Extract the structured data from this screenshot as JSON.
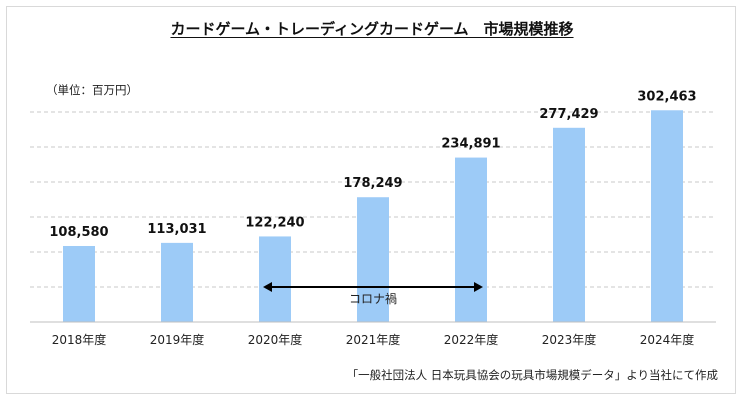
{
  "chart_data": {
    "type": "bar",
    "title": "カードゲーム・トレーディングカードゲーム　市場規模推移",
    "unit_label": "（単位：百万円）",
    "categories": [
      "2018年度",
      "2019年度",
      "2020年度",
      "2021年度",
      "2022年度",
      "2023年度",
      "2024年度"
    ],
    "values": [
      108580,
      113031,
      122240,
      178249,
      234891,
      277429,
      302463
    ],
    "value_labels": [
      "108,580",
      "113,031",
      "122,240",
      "178,249",
      "234,891",
      "277,429",
      "302,463"
    ],
    "ylim": [
      0,
      350000
    ],
    "grid": true,
    "bar_color": "#9dcbf7",
    "annotation": {
      "text": "コロナ禍",
      "from_category": "2020年度",
      "to_category": "2022年度"
    },
    "source": "「一般社団法人 日本玩具協会の玩具市場規模データ」より当社にて作成"
  }
}
